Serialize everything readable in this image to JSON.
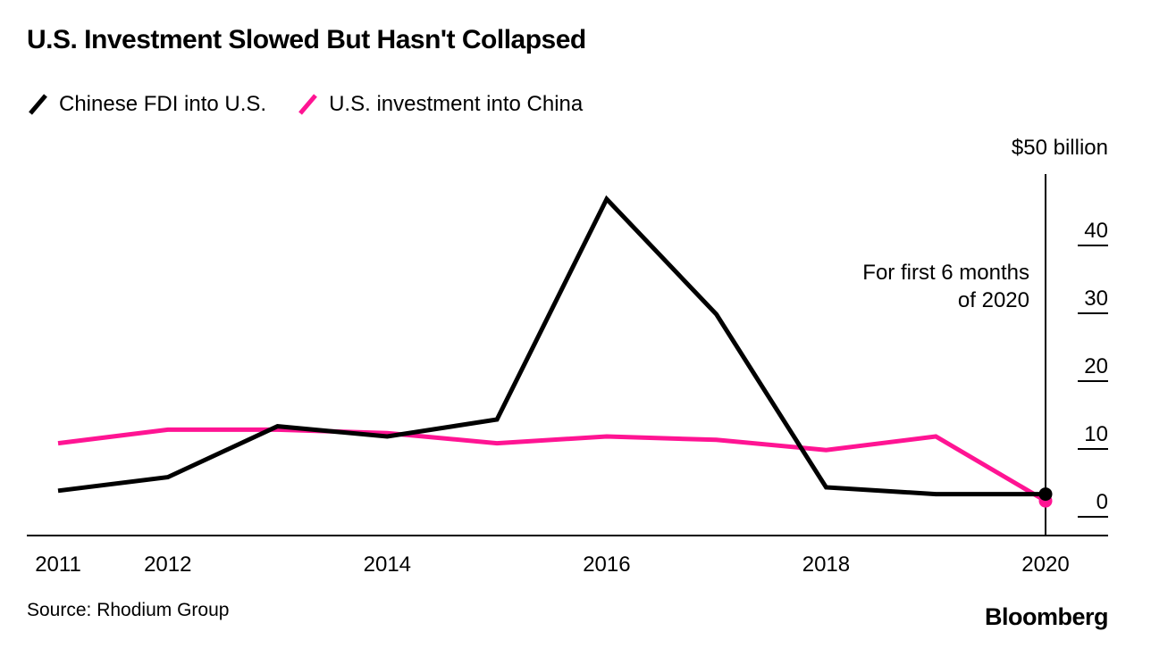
{
  "chart_data": {
    "type": "line",
    "title": "U.S. Investment Slowed But Hasn't Collapsed",
    "x": [
      2011,
      2012,
      2013,
      2014,
      2015,
      2016,
      2017,
      2018,
      2019,
      2020
    ],
    "series": [
      {
        "name": "Chinese FDI into U.S.",
        "color": "#000000",
        "values": [
          2,
          4,
          11.5,
          10,
          12.5,
          45,
          28,
          2.5,
          1.5,
          1.5
        ],
        "end_dot": true
      },
      {
        "name": "U.S. investment into China",
        "color": "#ff1493",
        "values": [
          9,
          11,
          11,
          10.5,
          9,
          10,
          9.5,
          8,
          10,
          0.5
        ],
        "end_dot": true
      }
    ],
    "ylim": [
      0,
      50
    ],
    "yticks": [
      0,
      10,
      20,
      30,
      40
    ],
    "xticks": [
      2011,
      2012,
      2014,
      2016,
      2018,
      2020
    ],
    "y_axis_top_label": "$50 billion",
    "y_axis_side": "right",
    "grid": false,
    "legend_position": "top-left",
    "annotation": {
      "lines": [
        "For first 6 months",
        "of 2020"
      ]
    }
  },
  "footer": {
    "source": "Source: Rhodium Group",
    "logo": "Bloomberg"
  }
}
